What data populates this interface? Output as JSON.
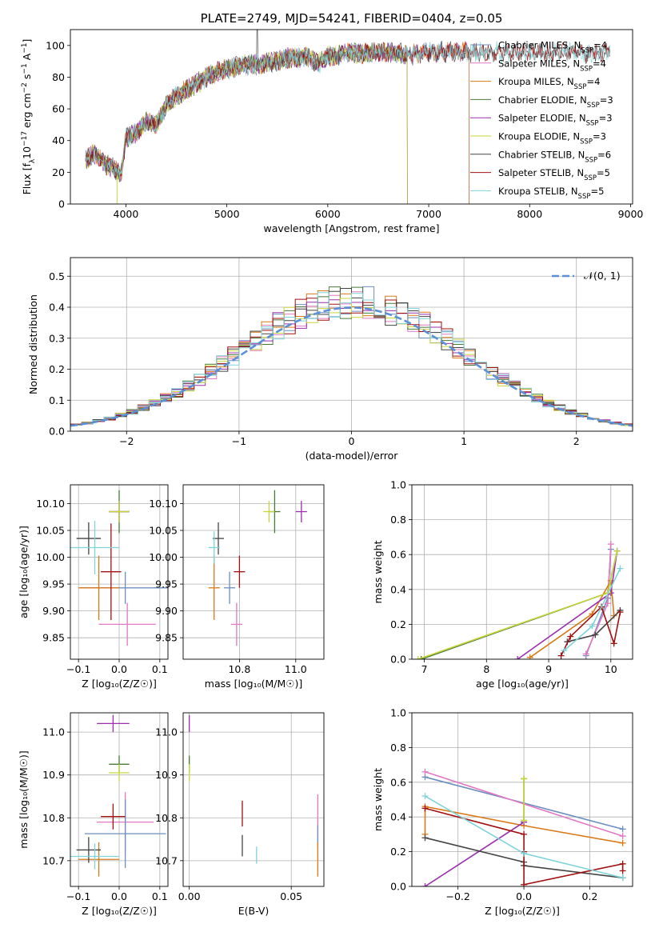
{
  "chart_data": [
    {
      "id": "spectrum",
      "type": "line",
      "title": "PLATE=2749, MJD=54241, FIBERID=0404, z=0.05",
      "xlabel": "wavelength [Angstrom, rest frame]",
      "ylabel_parts": [
        "Flux [f",
        "λ",
        "10",
        "−17",
        " erg cm",
        "−2",
        " s",
        "−1",
        " A",
        "−1",
        "]"
      ],
      "xlim": [
        3450,
        9020
      ],
      "ylim": [
        0,
        110
      ],
      "xticks": [
        4000,
        5000,
        6000,
        7000,
        8000,
        9000
      ],
      "yticks": [
        0,
        20,
        40,
        60,
        80,
        100
      ],
      "grid": false,
      "legend_position": "right",
      "continuum": {
        "x": [
          3600,
          3700,
          3800,
          3900,
          3950,
          4000,
          4100,
          4200,
          4300,
          4400,
          4500,
          4600,
          4700,
          4800,
          4900,
          5000,
          5100,
          5200,
          5300,
          5400,
          5500,
          5600,
          5700,
          5800,
          5900,
          6000,
          6200,
          6400,
          6600,
          6800,
          7000,
          7200,
          7400,
          7600,
          7800,
          8000,
          8200,
          8400,
          8600,
          8800
        ],
        "y": [
          28,
          32,
          25,
          22,
          18,
          42,
          45,
          52,
          50,
          62,
          68,
          72,
          76,
          80,
          83,
          85,
          87,
          88,
          88,
          89,
          90,
          92,
          92,
          93,
          88,
          93,
          95,
          95,
          96,
          94,
          96,
          96,
          96,
          96,
          96,
          96,
          95,
          97,
          95,
          97
        ]
      },
      "series": [
        {
          "name_main": "Chabrier MILES, N",
          "name_sub": "SSP",
          "name_tail": "=4",
          "color": "#6c8ebf",
          "xmax": 7400
        },
        {
          "name_main": "Salpeter MILES, N",
          "name_sub": "SSP",
          "name_tail": "=4",
          "color": "#e377c2",
          "xmax": 7400
        },
        {
          "name_main": "Kroupa MILES, N",
          "name_sub": "SSP",
          "name_tail": "=4",
          "color": "#d97a1a",
          "xmax": 7400
        },
        {
          "name_main": "Chabrier ELODIE, N",
          "name_sub": "SSP",
          "name_tail": "=3",
          "color": "#4a7a3a",
          "xmax": 6790
        },
        {
          "name_main": "Salpeter ELODIE, N",
          "name_sub": "SSP",
          "name_tail": "=3",
          "color": "#9b2fae",
          "xmax": 6790
        },
        {
          "name_main": "Kroupa ELODIE, N",
          "name_sub": "SSP",
          "name_tail": "=3",
          "color": "#c8d63a",
          "xmax": 6790
        },
        {
          "name_main": "Chabrier STELIB, N",
          "name_sub": "SSP",
          "name_tail": "=6",
          "color": "#444444",
          "xmax": 8800
        },
        {
          "name_main": "Salpeter STELIB, N",
          "name_sub": "SSP",
          "name_tail": "=5",
          "color": "#a01010",
          "xmax": 8800
        },
        {
          "name_main": "Kroupa STELIB, N",
          "name_sub": "SSP",
          "name_tail": "=5",
          "color": "#7fd3d8",
          "xmax": 8800
        }
      ]
    },
    {
      "id": "residuals",
      "type": "histogram",
      "xlabel": "(data-model)/error",
      "ylabel": "Normed distribution",
      "xlim": [
        -2.5,
        2.5
      ],
      "ylim": [
        0,
        0.56
      ],
      "xticks": [
        -2,
        -1,
        0,
        1,
        2
      ],
      "xtick_labels": [
        "−2",
        "−1",
        "0",
        "1",
        "2"
      ],
      "yticks": [
        0.0,
        0.1,
        0.2,
        0.3,
        0.4,
        0.5
      ],
      "ytick_labels": [
        "0.0",
        "0.1",
        "0.2",
        "0.3",
        "0.4",
        "0.5"
      ],
      "grid": true,
      "legend_position": "top-right",
      "legend_label": "𝒩(0, 1)",
      "gaussian_color": "#5b8fd6",
      "bin_width": 0.1,
      "bins_start": -2.5
    },
    {
      "id": "z-age",
      "type": "errorbar",
      "xlabel": "Z [log₁₀(Z/Z☉)]",
      "ylabel": "age  [log₁₀(age/yr)]",
      "xlim": [
        -0.12,
        0.12
      ],
      "ylim": [
        9.81,
        10.135
      ],
      "xticks": [
        -0.1,
        0.0,
        0.1
      ],
      "xtick_labels": [
        "−0.1",
        "0.0",
        "0.1"
      ],
      "yticks": [
        9.85,
        9.9,
        9.95,
        10.0,
        10.05,
        10.1
      ],
      "ytick_labels": [
        "9.85",
        "9.90",
        "9.95",
        "10.00",
        "10.05",
        "10.10"
      ],
      "grid": true,
      "points": [
        {
          "x": 0.02,
          "y": 9.875,
          "xerr": 0.07,
          "yerr": 0.04,
          "color": "#e377c2"
        },
        {
          "x": 0.015,
          "y": 9.943,
          "xerr": 0.11,
          "yerr": 0.03,
          "color": "#6c8ebf"
        },
        {
          "x": -0.05,
          "y": 9.943,
          "xerr": 0.05,
          "yerr": 0.06,
          "color": "#d97a1a"
        },
        {
          "x": 0.0,
          "y": 10.085,
          "xerr": 0.025,
          "yerr": 0.04,
          "color": "#4a7a3a"
        },
        {
          "x": 0.0,
          "y": 10.085,
          "xerr": 0.025,
          "yerr": 0.02,
          "color": "#9b2fae"
        },
        {
          "x": 0.0,
          "y": 10.085,
          "xerr": 0.025,
          "yerr": 0.02,
          "color": "#c8d63a"
        },
        {
          "x": -0.075,
          "y": 10.035,
          "xerr": 0.03,
          "yerr": 0.03,
          "color": "#444444"
        },
        {
          "x": -0.02,
          "y": 9.973,
          "xerr": 0.025,
          "yerr": 0.09,
          "color": "#a01010"
        },
        {
          "x": -0.06,
          "y": 10.018,
          "xerr": 0.06,
          "yerr": 0.05,
          "color": "#7fd3d8"
        }
      ]
    },
    {
      "id": "mass-age",
      "type": "errorbar",
      "xlabel": "mass [log₁₀(M/M☉)]",
      "ylabel": "",
      "xlim": [
        10.6,
        11.1
      ],
      "ylim": [
        9.81,
        10.135
      ],
      "xticks": [
        10.8,
        11.0
      ],
      "xtick_labels": [
        "10.8",
        "11.0"
      ],
      "yticks": [
        9.85,
        9.9,
        9.95,
        10.0,
        10.05,
        10.1
      ],
      "ytick_labels": [
        "9.85",
        "9.90",
        "9.95",
        "10.00",
        "10.05",
        "10.10"
      ],
      "grid": true,
      "points": [
        {
          "x": 10.79,
          "y": 9.875,
          "xerr": 0.02,
          "yerr": 0.04,
          "color": "#e377c2"
        },
        {
          "x": 10.765,
          "y": 9.943,
          "xerr": 0.02,
          "yerr": 0.03,
          "color": "#6c8ebf"
        },
        {
          "x": 10.71,
          "y": 9.943,
          "xerr": 0.02,
          "yerr": 0.06,
          "color": "#d97a1a"
        },
        {
          "x": 10.925,
          "y": 10.085,
          "xerr": 0.02,
          "yerr": 0.04,
          "color": "#4a7a3a"
        },
        {
          "x": 11.02,
          "y": 10.085,
          "xerr": 0.02,
          "yerr": 0.02,
          "color": "#9b2fae"
        },
        {
          "x": 10.905,
          "y": 10.085,
          "xerr": 0.02,
          "yerr": 0.02,
          "color": "#c8d63a"
        },
        {
          "x": 10.725,
          "y": 10.035,
          "xerr": 0.02,
          "yerr": 0.03,
          "color": "#444444"
        },
        {
          "x": 10.8,
          "y": 9.973,
          "xerr": 0.02,
          "yerr": 0.03,
          "color": "#a01010"
        },
        {
          "x": 10.71,
          "y": 10.018,
          "xerr": 0.02,
          "yerr": 0.03,
          "color": "#7fd3d8"
        }
      ]
    },
    {
      "id": "age-weight",
      "type": "line",
      "xlabel": "age  [log₁₀(age/yr)]",
      "ylabel": "mass weight",
      "xlim": [
        6.8,
        10.35
      ],
      "ylim": [
        0,
        1.0
      ],
      "xticks": [
        7,
        8,
        9,
        10
      ],
      "xtick_labels": [
        "7",
        "8",
        "9",
        "10"
      ],
      "yticks": [
        0.0,
        0.2,
        0.4,
        0.6,
        0.8,
        1.0
      ],
      "ytick_labels": [
        "0.0",
        "0.2",
        "0.4",
        "0.6",
        "0.8",
        "1.0"
      ],
      "grid": true,
      "series": [
        {
          "color": "#6c8ebf",
          "x": [
            9.6,
            9.95,
            10.0
          ],
          "y": [
            0.02,
            0.35,
            0.63
          ]
        },
        {
          "color": "#e377c2",
          "x": [
            9.6,
            9.95,
            10.0
          ],
          "y": [
            0.03,
            0.32,
            0.66
          ]
        },
        {
          "color": "#d97a1a",
          "x": [
            8.7,
            9.7,
            10.0,
            10.05
          ],
          "y": [
            0.01,
            0.26,
            0.45,
            0.25
          ]
        },
        {
          "color": "#4a7a3a",
          "x": [
            6.95,
            9.95,
            10.1
          ],
          "y": [
            0.0,
            0.38,
            0.62
          ]
        },
        {
          "color": "#9b2fae",
          "x": [
            8.5,
            10.0,
            10.1
          ],
          "y": [
            0.0,
            0.38,
            0.62
          ]
        },
        {
          "color": "#c8d63a",
          "x": [
            6.9,
            9.95,
            10.1
          ],
          "y": [
            0.0,
            0.38,
            0.62
          ]
        },
        {
          "color": "#444444",
          "x": [
            9.3,
            9.75,
            10.15
          ],
          "y": [
            0.1,
            0.14,
            0.28
          ]
        },
        {
          "color": "#a01010",
          "x": [
            9.2,
            9.35,
            9.85,
            10.05,
            10.15
          ],
          "y": [
            0.02,
            0.13,
            0.3,
            0.09,
            0.27
          ]
        },
        {
          "color": "#7fd3d8",
          "x": [
            9.25,
            9.7,
            10.15
          ],
          "y": [
            0.05,
            0.19,
            0.52
          ]
        }
      ]
    },
    {
      "id": "z-mass",
      "type": "errorbar",
      "xlabel": "Z [log₁₀(Z/Z☉)]",
      "ylabel": "mass [log₁₀(M/M☉)]",
      "xlim": [
        -0.12,
        0.12
      ],
      "ylim": [
        10.64,
        11.045
      ],
      "xticks": [
        -0.1,
        0.0,
        0.1
      ],
      "xtick_labels": [
        "−0.1",
        "0.0",
        "0.1"
      ],
      "yticks": [
        10.7,
        10.8,
        10.9,
        11.0
      ],
      "ytick_labels": [
        "10.7",
        "10.8",
        "10.9",
        "11.0"
      ],
      "grid": true,
      "points": [
        {
          "x": 0.015,
          "y": 10.79,
          "xerr": 0.07,
          "yerr": 0.07,
          "color": "#e377c2"
        },
        {
          "x": 0.015,
          "y": 10.763,
          "xerr": 0.1,
          "yerr": 0.08,
          "color": "#6c8ebf"
        },
        {
          "x": -0.05,
          "y": 10.703,
          "xerr": 0.05,
          "yerr": 0.04,
          "color": "#d97a1a"
        },
        {
          "x": 0.0,
          "y": 10.925,
          "xerr": 0.025,
          "yerr": 0.02,
          "color": "#4a7a3a"
        },
        {
          "x": -0.015,
          "y": 11.02,
          "xerr": 0.04,
          "yerr": 0.02,
          "color": "#9b2fae"
        },
        {
          "x": 0.0,
          "y": 10.905,
          "xerr": 0.025,
          "yerr": 0.02,
          "color": "#c8d63a"
        },
        {
          "x": -0.075,
          "y": 10.725,
          "xerr": 0.03,
          "yerr": 0.03,
          "color": "#444444"
        },
        {
          "x": -0.015,
          "y": 10.803,
          "xerr": 0.03,
          "yerr": 0.03,
          "color": "#a01010"
        },
        {
          "x": -0.06,
          "y": 10.71,
          "xerr": 0.06,
          "yerr": 0.03,
          "color": "#7fd3d8"
        }
      ]
    },
    {
      "id": "ebv-mass",
      "type": "errorbar",
      "xlabel": "E(B-V)",
      "ylabel": "",
      "xlim": [
        -0.003,
        0.066
      ],
      "ylim": [
        10.64,
        11.045
      ],
      "xticks": [
        0.0,
        0.05
      ],
      "xtick_labels": [
        "0.00",
        "0.05"
      ],
      "yticks": [
        10.7,
        10.8,
        10.9,
        11.0
      ],
      "ytick_labels": [
        "10.7",
        "10.8",
        "10.9",
        "11.0"
      ],
      "grid": true,
      "points": [
        {
          "x": 0.063,
          "y": 10.79,
          "xerr": 0.0,
          "yerr": 0.065,
          "color": "#e377c2"
        },
        {
          "x": 0.063,
          "y": 10.763,
          "xerr": 0.0,
          "yerr": 0.02,
          "color": "#6c8ebf"
        },
        {
          "x": 0.063,
          "y": 10.703,
          "xerr": 0.0,
          "yerr": 0.04,
          "color": "#d97a1a"
        },
        {
          "x": 0.0,
          "y": 10.925,
          "xerr": 0.0,
          "yerr": 0.02,
          "color": "#4a7a3a"
        },
        {
          "x": 0.0,
          "y": 11.02,
          "xerr": 0.0,
          "yerr": 0.02,
          "color": "#9b2fae"
        },
        {
          "x": 0.0,
          "y": 10.905,
          "xerr": 0.0,
          "yerr": 0.02,
          "color": "#c8d63a"
        },
        {
          "x": 0.026,
          "y": 10.735,
          "xerr": 0.0,
          "yerr": 0.025,
          "color": "#444444"
        },
        {
          "x": 0.026,
          "y": 10.81,
          "xerr": 0.0,
          "yerr": 0.03,
          "color": "#a01010"
        },
        {
          "x": 0.033,
          "y": 10.713,
          "xerr": 0.0,
          "yerr": 0.02,
          "color": "#7fd3d8"
        }
      ]
    },
    {
      "id": "z-weight",
      "type": "line",
      "xlabel": "Z [log₁₀(Z/Z☉)]",
      "ylabel": "mass weight",
      "xlim": [
        -0.34,
        0.33
      ],
      "ylim": [
        0,
        1.0
      ],
      "xticks": [
        -0.2,
        0.0,
        0.2
      ],
      "xtick_labels": [
        "−0.2",
        "0.0",
        "0.2"
      ],
      "yticks": [
        0.0,
        0.2,
        0.4,
        0.6,
        0.8,
        1.0
      ],
      "ytick_labels": [
        "0.0",
        "0.2",
        "0.4",
        "0.6",
        "0.8",
        "1.0"
      ],
      "grid": true,
      "series": [
        {
          "color": "#6c8ebf",
          "x": [
            -0.3,
            0.3
          ],
          "y": [
            0.63,
            0.33
          ]
        },
        {
          "color": "#e377c2",
          "x": [
            -0.3,
            0.3
          ],
          "y": [
            0.66,
            0.29
          ]
        },
        {
          "color": "#d97a1a",
          "x": [
            -0.3,
            -0.3,
            0.0,
            0.3
          ],
          "y": [
            0.3,
            0.46,
            0.35,
            0.25
          ]
        },
        {
          "color": "#4a7a3a",
          "x": [
            0.0,
            0.0
          ],
          "y": [
            0.38,
            0.62
          ]
        },
        {
          "color": "#9b2fae",
          "x": [
            -0.3,
            0.0
          ],
          "y": [
            0.0,
            0.37
          ]
        },
        {
          "color": "#c8d63a",
          "x": [
            0.0,
            0.0
          ],
          "y": [
            0.38,
            0.62
          ]
        },
        {
          "color": "#444444",
          "x": [
            -0.3,
            0.0,
            0.0,
            0.3
          ],
          "y": [
            0.28,
            0.14,
            0.12,
            0.05
          ]
        },
        {
          "color": "#a01010",
          "x": [
            -0.3,
            0.0,
            0.0,
            0.0,
            0.3,
            0.3
          ],
          "y": [
            0.45,
            0.3,
            0.2,
            0.01,
            0.13,
            0.09
          ]
        },
        {
          "color": "#7fd3d8",
          "x": [
            -0.3,
            0.0,
            0.3
          ],
          "y": [
            0.52,
            0.19,
            0.05
          ]
        }
      ]
    }
  ]
}
